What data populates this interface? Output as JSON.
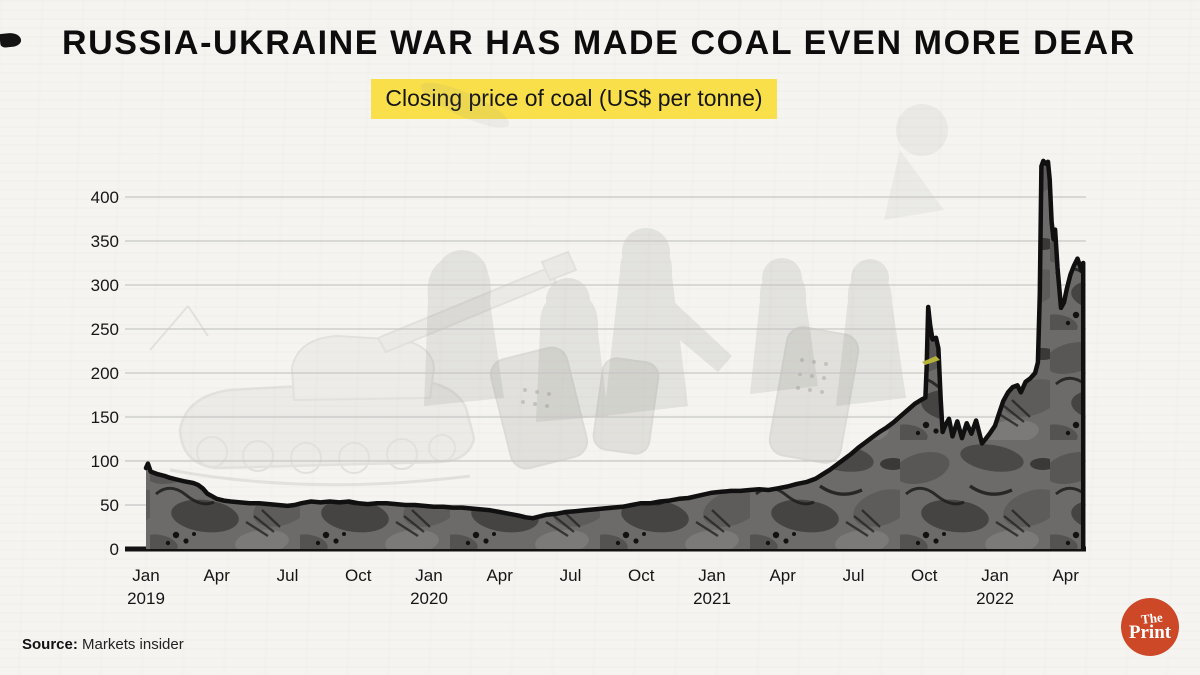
{
  "header": {
    "title": "RUSSIA-UKRAINE WAR HAS MADE COAL EVEN MORE DEAR",
    "subtitle": "Closing price of coal (US$ per tonne)",
    "subtitle_bg": "#f9e04b"
  },
  "source": {
    "label": "Source:",
    "value": " Markets insider"
  },
  "logo": {
    "line1": "The",
    "line2": "Print",
    "bg": "#cc4827",
    "text_color": "#ffffff"
  },
  "chart_data": {
    "type": "area",
    "title": "Closing price of coal (US$ per tonne)",
    "xlabel": "",
    "ylabel": "US$ per tonne",
    "ylim": [
      0,
      450
    ],
    "grid": true,
    "legend": "none",
    "x_unit": "months since Jan 2019",
    "yticks": [
      0,
      50,
      100,
      150,
      200,
      250,
      300,
      350,
      400
    ],
    "xticks": [
      {
        "m": 0,
        "label": "Jan",
        "year": "2019"
      },
      {
        "m": 3,
        "label": "Apr"
      },
      {
        "m": 6,
        "label": "Jul"
      },
      {
        "m": 9,
        "label": "Oct"
      },
      {
        "m": 12,
        "label": "Jan",
        "year": "2020"
      },
      {
        "m": 15,
        "label": "Apr"
      },
      {
        "m": 18,
        "label": "Jul"
      },
      {
        "m": 21,
        "label": "Oct"
      },
      {
        "m": 24,
        "label": "Jan",
        "year": "2021"
      },
      {
        "m": 27,
        "label": "Apr"
      },
      {
        "m": 30,
        "label": "Jul"
      },
      {
        "m": 33,
        "label": "Oct"
      },
      {
        "m": 36,
        "label": "Jan",
        "year": "2022"
      },
      {
        "m": 39,
        "label": "Apr"
      }
    ],
    "colors": {
      "line": "#101010",
      "area_base": "#6c6b69",
      "grid": "#c7c6c4",
      "axis": "#121212"
    },
    "series": [
      {
        "name": "Coal closing price (US$ per tonne)",
        "points": [
          [
            0,
            92
          ],
          [
            0.08,
            97
          ],
          [
            0.2,
            88
          ],
          [
            0.5,
            85
          ],
          [
            0.8,
            83
          ],
          [
            1,
            81
          ],
          [
            1.3,
            79
          ],
          [
            1.6,
            77
          ],
          [
            2,
            75
          ],
          [
            2.2,
            73
          ],
          [
            2.4,
            69
          ],
          [
            2.6,
            63
          ],
          [
            2.8,
            60
          ],
          [
            3,
            57
          ],
          [
            3.3,
            55
          ],
          [
            3.6,
            54
          ],
          [
            4,
            53
          ],
          [
            4.4,
            52
          ],
          [
            4.8,
            52
          ],
          [
            5.2,
            51
          ],
          [
            5.6,
            50
          ],
          [
            6,
            49
          ],
          [
            6.3,
            50
          ],
          [
            6.6,
            52
          ],
          [
            7,
            54
          ],
          [
            7.4,
            53
          ],
          [
            7.8,
            54
          ],
          [
            8.2,
            53
          ],
          [
            8.6,
            54
          ],
          [
            9,
            52
          ],
          [
            9.4,
            51
          ],
          [
            9.8,
            52
          ],
          [
            10.2,
            52
          ],
          [
            10.6,
            51
          ],
          [
            11,
            50
          ],
          [
            11.4,
            50
          ],
          [
            11.8,
            49
          ],
          [
            12.2,
            48
          ],
          [
            12.6,
            48
          ],
          [
            13,
            47
          ],
          [
            13.4,
            47
          ],
          [
            13.8,
            46
          ],
          [
            14.2,
            45
          ],
          [
            14.6,
            44
          ],
          [
            15,
            42
          ],
          [
            15.4,
            40
          ],
          [
            15.8,
            38
          ],
          [
            16.1,
            36
          ],
          [
            16.4,
            35
          ],
          [
            16.7,
            37
          ],
          [
            17,
            39
          ],
          [
            17.4,
            40
          ],
          [
            17.8,
            42
          ],
          [
            18.2,
            43
          ],
          [
            18.6,
            44
          ],
          [
            19,
            45
          ],
          [
            19.4,
            46
          ],
          [
            19.8,
            47
          ],
          [
            20.2,
            48
          ],
          [
            20.6,
            50
          ],
          [
            21,
            52
          ],
          [
            21.4,
            52
          ],
          [
            21.8,
            54
          ],
          [
            22.2,
            55
          ],
          [
            22.6,
            57
          ],
          [
            23,
            58
          ],
          [
            23.5,
            61
          ],
          [
            24,
            64
          ],
          [
            24.4,
            65
          ],
          [
            24.8,
            66
          ],
          [
            25.2,
            66
          ],
          [
            25.6,
            67
          ],
          [
            26,
            68
          ],
          [
            26.4,
            67
          ],
          [
            26.8,
            69
          ],
          [
            27.2,
            71
          ],
          [
            27.6,
            74
          ],
          [
            28,
            76
          ],
          [
            28.4,
            80
          ],
          [
            28.7,
            85
          ],
          [
            29,
            90
          ],
          [
            29.3,
            96
          ],
          [
            29.6,
            102
          ],
          [
            29.9,
            108
          ],
          [
            30.2,
            115
          ],
          [
            30.5,
            121
          ],
          [
            30.8,
            127
          ],
          [
            31.1,
            133
          ],
          [
            31.4,
            138
          ],
          [
            31.7,
            144
          ],
          [
            32,
            151
          ],
          [
            32.3,
            158
          ],
          [
            32.6,
            165
          ],
          [
            32.9,
            170
          ],
          [
            33.05,
            172
          ],
          [
            33.1,
            205
          ],
          [
            33.17,
            275
          ],
          [
            33.25,
            255
          ],
          [
            33.35,
            238
          ],
          [
            33.5,
            240
          ],
          [
            33.6,
            228
          ],
          [
            33.7,
            170
          ],
          [
            33.78,
            133
          ],
          [
            33.9,
            141
          ],
          [
            34.05,
            148
          ],
          [
            34.2,
            128
          ],
          [
            34.4,
            145
          ],
          [
            34.6,
            126
          ],
          [
            34.8,
            143
          ],
          [
            35,
            131
          ],
          [
            35.2,
            146
          ],
          [
            35.45,
            120
          ],
          [
            35.6,
            125
          ],
          [
            35.8,
            132
          ],
          [
            36,
            140
          ],
          [
            36.15,
            152
          ],
          [
            36.35,
            168
          ],
          [
            36.55,
            178
          ],
          [
            36.75,
            184
          ],
          [
            36.95,
            186
          ],
          [
            37.1,
            178
          ],
          [
            37.3,
            190
          ],
          [
            37.5,
            194
          ],
          [
            37.7,
            200
          ],
          [
            37.82,
            212
          ],
          [
            37.9,
            290
          ],
          [
            37.97,
            435
          ],
          [
            38.05,
            441
          ],
          [
            38.15,
            438
          ],
          [
            38.25,
            440
          ],
          [
            38.32,
            420
          ],
          [
            38.4,
            372
          ],
          [
            38.48,
            352
          ],
          [
            38.55,
            363
          ],
          [
            38.65,
            320
          ],
          [
            38.8,
            274
          ],
          [
            38.92,
            280
          ],
          [
            39.05,
            296
          ],
          [
            39.2,
            312
          ],
          [
            39.35,
            322
          ],
          [
            39.5,
            330
          ],
          [
            39.6,
            322
          ],
          [
            39.68,
            316
          ],
          [
            39.74,
            325
          ]
        ]
      }
    ]
  }
}
